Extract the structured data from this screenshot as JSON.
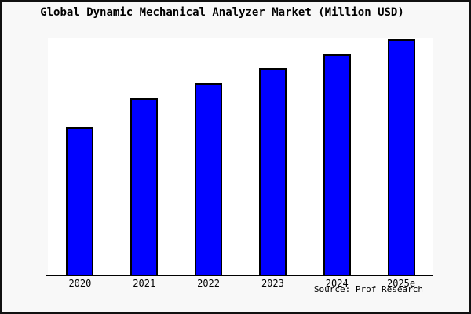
{
  "title": "Global Dynamic Mechanical Analyzer Market (Million USD)",
  "source_note": "Source: Prof Research",
  "colors": {
    "bar_fill": "#0000ff",
    "bar_outline": "#000000",
    "figure_background": "#f8f8f8",
    "plot_background": "#ffffff",
    "axis_line": "#000000",
    "frame": "#111111"
  },
  "chart_data": {
    "type": "bar",
    "title": "Global Dynamic Mechanical Analyzer Market (Million USD)",
    "categories": [
      "2020",
      "2021",
      "2022",
      "2023",
      "2024",
      "2025e"
    ],
    "values": [
      188,
      225,
      244,
      263,
      281,
      300
    ],
    "value_units": "relative (no y-axis ticks or value labels shown in figure)",
    "xlabel": "",
    "ylabel": "",
    "ylim": [
      0,
      302
    ],
    "grid": false,
    "legend": false,
    "y_axis_shown": false,
    "annotation": "Source: Prof Research",
    "annotation_position": "bottom-right"
  }
}
